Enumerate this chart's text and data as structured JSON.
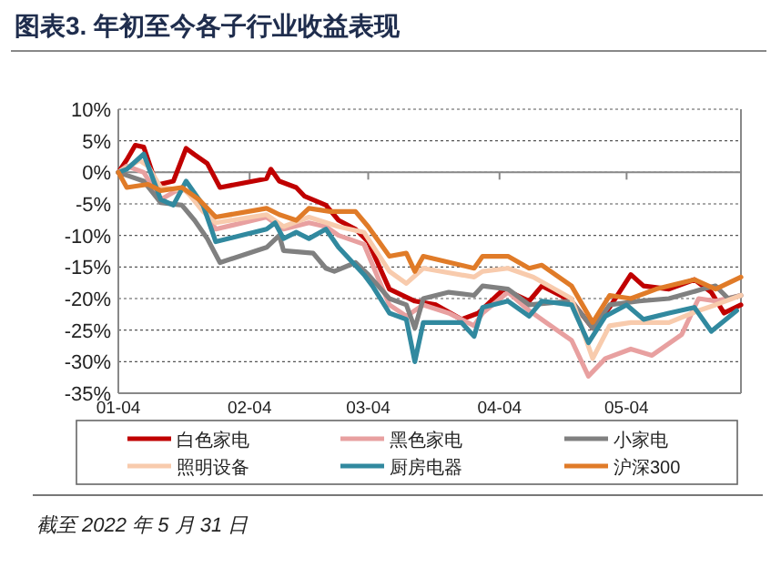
{
  "chart_data": {
    "type": "line",
    "title": "图表3. 年初至今各子行业收益表现",
    "annotations": [
      "截至 2022 年 5 月 31 日"
    ],
    "xlim": [
      "2022-01-04",
      "2022-05-31"
    ],
    "xticks": [
      {
        "value": "2022-01-04",
        "label": "01-04"
      },
      {
        "value": "2022-02-04",
        "label": "02-04"
      },
      {
        "value": "2022-03-04",
        "label": "03-04"
      },
      {
        "value": "2022-04-04",
        "label": "04-04"
      },
      {
        "value": "2022-05-04",
        "label": "05-04"
      }
    ],
    "ylim": [
      -35,
      10
    ],
    "yticks": [
      {
        "value": 10,
        "label": "10%"
      },
      {
        "value": 5,
        "label": "5%"
      },
      {
        "value": 0,
        "label": "0%"
      },
      {
        "value": -5,
        "label": "-5%"
      },
      {
        "value": -10,
        "label": "-10%"
      },
      {
        "value": -15,
        "label": "-15%"
      },
      {
        "value": -20,
        "label": "-20%"
      },
      {
        "value": -25,
        "label": "-25%"
      },
      {
        "value": -30,
        "label": "-30%"
      },
      {
        "value": -35,
        "label": "-35%"
      }
    ],
    "grid": "y",
    "legend": "bottom",
    "marker": "none",
    "line_style": "solid",
    "series": [
      {
        "name": "白色家电",
        "color": "#c00000",
        "x": [
          "2022-01-04",
          "2022-01-06",
          "2022-01-08",
          "2022-01-10",
          "2022-01-13",
          "2022-01-17",
          "2022-01-20",
          "2022-01-22",
          "2022-01-25",
          "2022-01-28",
          "2022-02-08",
          "2022-02-09",
          "2022-02-11",
          "2022-02-15",
          "2022-02-17",
          "2022-02-22",
          "2022-02-25",
          "2022-03-01",
          "2022-03-04",
          "2022-03-09",
          "2022-03-15",
          "2022-03-20",
          "2022-03-26",
          "2022-03-30",
          "2022-04-05",
          "2022-04-11",
          "2022-04-14",
          "2022-04-21",
          "2022-04-26",
          "2022-04-30",
          "2022-05-05",
          "2022-05-08",
          "2022-05-14",
          "2022-05-20",
          "2022-05-24",
          "2022-05-27",
          "2022-05-31"
        ],
        "values": [
          0,
          2,
          4.3,
          4,
          -2,
          -1.4,
          3.8,
          2.8,
          1.4,
          -2.4,
          -1,
          0.5,
          -1.4,
          -2.4,
          -3.8,
          -5.2,
          -7.6,
          -9,
          -11,
          -18.5,
          -20.4,
          -21,
          -23.3,
          -22.3,
          -18.5,
          -20.4,
          -18,
          -20.4,
          -24.7,
          -21.4,
          -16.2,
          -18,
          -18.5,
          -17,
          -19,
          -22.3,
          -21
        ]
      },
      {
        "name": "黑色家电",
        "color": "#e8a0a0",
        "x": [
          "2022-01-04",
          "2022-01-06",
          "2022-01-10",
          "2022-01-14",
          "2022-01-19",
          "2022-01-23",
          "2022-01-27",
          "2022-02-08",
          "2022-02-12",
          "2022-02-18",
          "2022-02-22",
          "2022-02-25",
          "2022-03-03",
          "2022-03-09",
          "2022-03-13",
          "2022-03-17",
          "2022-03-23",
          "2022-03-29",
          "2022-03-31",
          "2022-04-06",
          "2022-04-11",
          "2022-04-15",
          "2022-04-21",
          "2022-04-25",
          "2022-04-29",
          "2022-05-05",
          "2022-05-10",
          "2022-05-17",
          "2022-05-21",
          "2022-05-25",
          "2022-05-31"
        ],
        "values": [
          0,
          1,
          0,
          -4.3,
          -2.4,
          -4.8,
          -9,
          -7.1,
          -9,
          -8,
          -8.6,
          -10,
          -11.4,
          -21,
          -22.8,
          -21,
          -22.3,
          -24.3,
          -22.3,
          -19,
          -21.9,
          -23.8,
          -26.6,
          -32.3,
          -29.5,
          -28,
          -29,
          -25.7,
          -20,
          -20.4,
          -19.5
        ]
      },
      {
        "name": "小家电",
        "color": "#808080",
        "x": [
          "2022-01-04",
          "2022-01-10",
          "2022-01-14",
          "2022-01-19",
          "2022-01-22",
          "2022-01-25",
          "2022-01-28",
          "2022-02-08",
          "2022-02-11",
          "2022-02-12",
          "2022-02-19",
          "2022-02-22",
          "2022-02-24",
          "2022-03-01",
          "2022-03-04",
          "2022-03-09",
          "2022-03-13",
          "2022-03-15",
          "2022-03-17",
          "2022-03-23",
          "2022-03-29",
          "2022-03-31",
          "2022-04-06",
          "2022-04-11",
          "2022-04-21",
          "2022-04-26",
          "2022-04-30",
          "2022-05-07",
          "2022-05-14",
          "2022-05-22",
          "2022-05-25",
          "2022-05-28",
          "2022-05-31"
        ],
        "values": [
          0,
          -1.4,
          -4.8,
          -5.2,
          -7.6,
          -10.5,
          -14.3,
          -11.9,
          -10,
          -12.4,
          -12.8,
          -15.2,
          -15.7,
          -14.3,
          -16.2,
          -20,
          -21,
          -24.7,
          -20,
          -19,
          -19.5,
          -18,
          -18.5,
          -21,
          -20.4,
          -24.7,
          -21,
          -20.4,
          -20,
          -18.5,
          -18,
          -20,
          -19.5
        ]
      },
      {
        "name": "照明设备",
        "color": "#f8cbad",
        "x": [
          "2022-01-04",
          "2022-01-09",
          "2022-01-11",
          "2022-01-14",
          "2022-01-20",
          "2022-01-24",
          "2022-01-27",
          "2022-02-08",
          "2022-02-12",
          "2022-02-18",
          "2022-02-25",
          "2022-03-03",
          "2022-03-09",
          "2022-03-13",
          "2022-03-17",
          "2022-03-29",
          "2022-03-31",
          "2022-04-06",
          "2022-04-12",
          "2022-04-21",
          "2022-04-26",
          "2022-04-30",
          "2022-05-05",
          "2022-05-14",
          "2022-05-21",
          "2022-05-25",
          "2022-05-31"
        ],
        "values": [
          0,
          1.9,
          1,
          -2.4,
          -2.9,
          -6.2,
          -8,
          -6.7,
          -8.6,
          -7.1,
          -8.6,
          -9.5,
          -15.7,
          -17.6,
          -15.2,
          -16.6,
          -15.7,
          -15.2,
          -16.6,
          -20,
          -29.5,
          -24.3,
          -23.8,
          -23.8,
          -21.9,
          -21,
          -19.5
        ]
      },
      {
        "name": "厨房电器",
        "color": "#31899f",
        "x": [
          "2022-01-04",
          "2022-01-06",
          "2022-01-10",
          "2022-01-14",
          "2022-01-17",
          "2022-01-20",
          "2022-01-24",
          "2022-01-27",
          "2022-02-08",
          "2022-02-10",
          "2022-02-12",
          "2022-02-15",
          "2022-02-18",
          "2022-02-22",
          "2022-02-25",
          "2022-03-03",
          "2022-03-05",
          "2022-03-09",
          "2022-03-13",
          "2022-03-15",
          "2022-03-17",
          "2022-03-26",
          "2022-03-29",
          "2022-03-31",
          "2022-04-06",
          "2022-04-11",
          "2022-04-14",
          "2022-04-21",
          "2022-04-25",
          "2022-04-29",
          "2022-05-04",
          "2022-05-08",
          "2022-05-14",
          "2022-05-20",
          "2022-05-24",
          "2022-05-30"
        ],
        "values": [
          0,
          0.5,
          2.9,
          -4.3,
          -5.2,
          -1.4,
          -5.2,
          -11,
          -9,
          -8,
          -10.5,
          -9.5,
          -10.5,
          -9,
          -11.9,
          -16.2,
          -18,
          -22.3,
          -23.3,
          -30,
          -23.8,
          -23.8,
          -26,
          -21.4,
          -20.4,
          -22.8,
          -20.4,
          -21,
          -27,
          -22.8,
          -21,
          -23.3,
          -22.3,
          -21.4,
          -25.2,
          -21.9
        ]
      },
      {
        "name": "沪深300",
        "color": "#e07b28",
        "x": [
          "2022-01-04",
          "2022-01-06",
          "2022-01-11",
          "2022-01-14",
          "2022-01-19",
          "2022-01-23",
          "2022-01-27",
          "2022-02-08",
          "2022-02-11",
          "2022-02-15",
          "2022-02-18",
          "2022-02-23",
          "2022-03-01",
          "2022-03-04",
          "2022-03-09",
          "2022-03-13",
          "2022-03-15",
          "2022-03-17",
          "2022-03-29",
          "2022-03-31",
          "2022-04-06",
          "2022-04-11",
          "2022-04-14",
          "2022-04-21",
          "2022-04-26",
          "2022-04-30",
          "2022-05-05",
          "2022-05-11",
          "2022-05-20",
          "2022-05-25",
          "2022-05-31"
        ],
        "values": [
          0,
          -2.4,
          -1.9,
          -2.9,
          -2.4,
          -4.3,
          -7.1,
          -5.7,
          -6.7,
          -7.6,
          -5.7,
          -6.2,
          -6.2,
          -8.6,
          -13.3,
          -12.8,
          -15.7,
          -13.3,
          -15.2,
          -13.3,
          -13.3,
          -15.2,
          -14.7,
          -18,
          -23.8,
          -19.5,
          -20,
          -18.5,
          -17,
          -18.5,
          -16.6
        ]
      }
    ]
  }
}
